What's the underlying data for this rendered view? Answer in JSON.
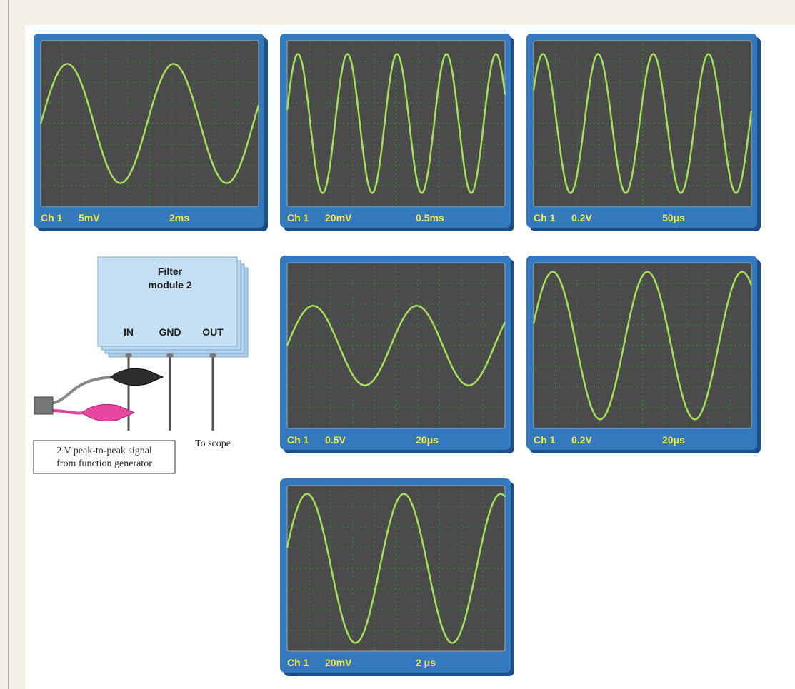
{
  "scopes": [
    {
      "channel": "Ch 1",
      "volts_per_div": "5mV",
      "time_per_div": "2ms"
    },
    {
      "channel": "Ch 1",
      "volts_per_div": "20mV",
      "time_per_div": "0.5ms"
    },
    {
      "channel": "Ch 1",
      "volts_per_div": "0.2V",
      "time_per_div": "50μs"
    },
    {
      "channel": "Ch 1",
      "volts_per_div": "0.5V",
      "time_per_div": "20μs"
    },
    {
      "channel": "Ch 1",
      "volts_per_div": "0.2V",
      "time_per_div": "20μs"
    },
    {
      "channel": "Ch 1",
      "volts_per_div": "20mV",
      "time_per_div": "2 μs"
    }
  ],
  "filter_module": {
    "title": [
      "Filter",
      "module 2"
    ],
    "pins": [
      "IN",
      "GND",
      "OUT"
    ]
  },
  "input_label": [
    "2 V peak-to-peak signal",
    "from function generator"
  ],
  "output_label": "To scope"
}
